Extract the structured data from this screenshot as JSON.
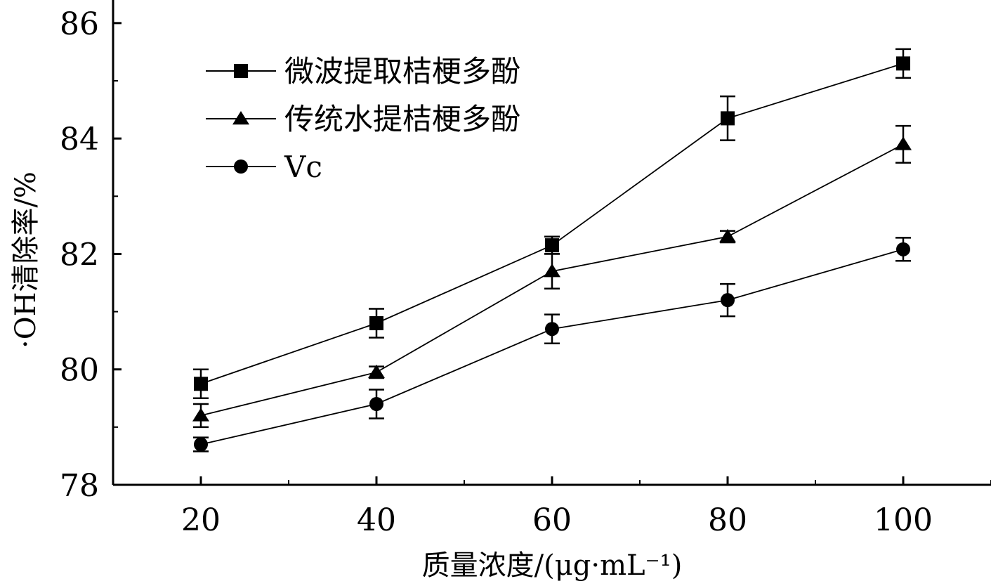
{
  "chart_data": {
    "type": "line",
    "title": "",
    "xlabel": "质量浓度/(μg·mL⁻¹)",
    "ylabel": "·OH清除率/%",
    "x": [
      20,
      40,
      60,
      80,
      100
    ],
    "xticks": [
      20,
      40,
      60,
      80,
      100
    ],
    "xlim": [
      10,
      110
    ],
    "yticks": [
      78,
      80,
      82,
      84,
      86
    ],
    "ylim": [
      78,
      86.4
    ],
    "grid": false,
    "legend_position": "top-left",
    "series": [
      {
        "name": "微波提取桔梗多酚",
        "marker": "square",
        "values": [
          79.75,
          80.8,
          82.15,
          84.35,
          85.3
        ],
        "errors": [
          0.25,
          0.25,
          0.15,
          0.38,
          0.25
        ]
      },
      {
        "name": "传统水提桔梗多酚",
        "marker": "triangle",
        "values": [
          79.2,
          79.95,
          81.7,
          82.3,
          83.9
        ],
        "errors": [
          0.2,
          0.1,
          0.3,
          0.1,
          0.32
        ]
      },
      {
        "name": "Vc",
        "marker": "circle",
        "values": [
          78.7,
          79.4,
          80.7,
          81.2,
          82.08
        ],
        "errors": [
          0.12,
          0.25,
          0.25,
          0.28,
          0.2
        ]
      }
    ]
  }
}
